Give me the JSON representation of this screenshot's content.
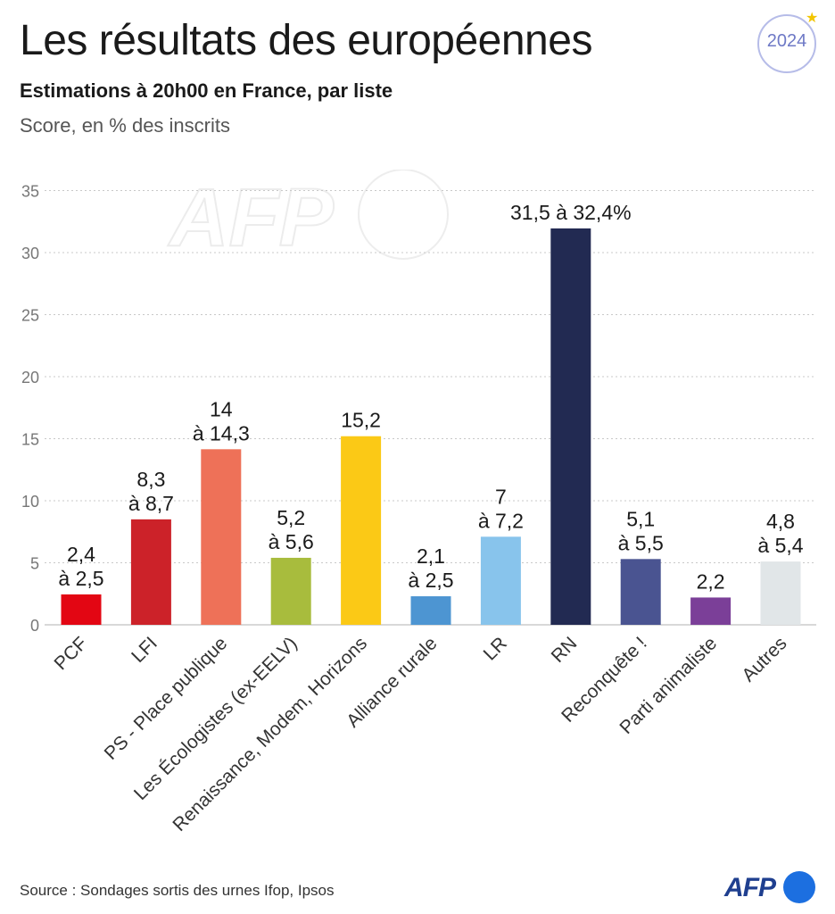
{
  "header": {
    "title": "Les résultats des européennes",
    "subtitle": "Estimations à 20h00 en France, par liste",
    "unit": "Score, en % des inscrits",
    "badge": "2024"
  },
  "footer": {
    "source": "Source : Sondages sortis des urnes Ifop, Ipsos",
    "logo": "AFP"
  },
  "watermark": "AFP",
  "chart_data": {
    "type": "bar",
    "title": "Les résultats des européennes",
    "ylabel": "Score, en % des inscrits",
    "ylim": [
      0,
      35
    ],
    "yticks": [
      0,
      5,
      10,
      15,
      20,
      25,
      30,
      35
    ],
    "grid": true,
    "categories": [
      "PCF",
      "LFI",
      "PS - Place publique",
      "Les Écologistes (ex-EELV)",
      "Renaissance, Modem, Horizons",
      "Alliance rurale",
      "LR",
      "RN",
      "Reconquête !",
      "Parti animaliste",
      "Autres"
    ],
    "values": [
      2.45,
      8.5,
      14.15,
      5.4,
      15.2,
      2.3,
      7.1,
      31.95,
      5.3,
      2.2,
      5.1
    ],
    "labels": [
      [
        "2,4",
        "à 2,5"
      ],
      [
        "8,3",
        "à 8,7"
      ],
      [
        "14",
        "à 14,3"
      ],
      [
        "5,2",
        "à 5,6"
      ],
      [
        "15,2"
      ],
      [
        "2,1",
        "à 2,5"
      ],
      [
        "7",
        "à 7,2"
      ],
      [
        "31,5 à 32,4%"
      ],
      [
        "5,1",
        "à 5,5"
      ],
      [
        "2,2"
      ],
      [
        "4,8",
        "à 5,4"
      ]
    ],
    "colors": [
      "#e30613",
      "#cc2229",
      "#ee7158",
      "#a8bc3d",
      "#fbc916",
      "#4d95d2",
      "#88c4ec",
      "#222a52",
      "#4a5491",
      "#7b3f98",
      "#e1e6e8"
    ]
  }
}
